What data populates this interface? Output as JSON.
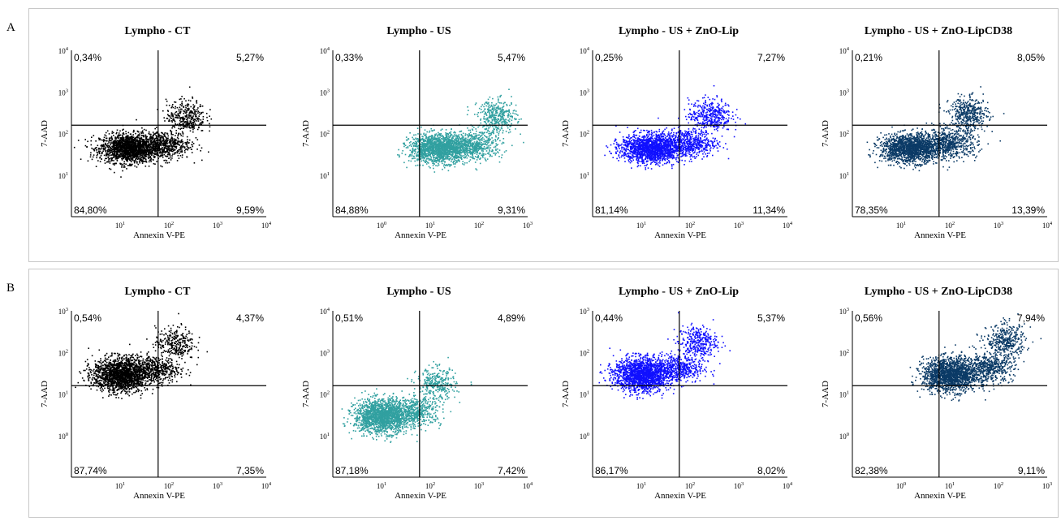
{
  "figure": {
    "rows": [
      {
        "label": "A"
      },
      {
        "label": "B"
      }
    ]
  },
  "colors": {
    "ct": "#000000",
    "us": "#31a0a0",
    "zno_lip": "#1010ff",
    "zno_lipcd38": "#0b3a66"
  },
  "chart_data": [
    {
      "type": "scatter",
      "row": "A",
      "title": "Lympho - CT",
      "xlabel": "Annexin V-PE",
      "ylabel": "7-AAD",
      "xscale": "log",
      "yscale": "log",
      "xticks": [
        "10^1",
        "10^2",
        "10^3",
        "10^4"
      ],
      "yticks": [
        "10^1",
        "10^2",
        "10^3",
        "10^4"
      ],
      "quadrants": {
        "upper_left": "0,34%",
        "upper_right": "5,27%",
        "lower_left": "84,80%",
        "lower_right": "9,59%"
      },
      "series": [
        {
          "color": "#000000",
          "clusters": [
            {
              "cx": 15,
              "cy": 45,
              "sx": 0.3,
              "sy": 0.17,
              "n": 1700
            },
            {
              "cx": 75,
              "cy": 55,
              "sx": 0.28,
              "sy": 0.17,
              "n": 520
            },
            {
              "cx": 220,
              "cy": 260,
              "sx": 0.2,
              "sy": 0.2,
              "n": 360
            }
          ]
        }
      ]
    },
    {
      "type": "scatter",
      "row": "A",
      "title": "Lympho - US",
      "xlabel": "Annexin V-PE",
      "ylabel": "7-AAD",
      "xscale": "log",
      "yscale": "log",
      "xticks": [
        "10^0",
        "10^1",
        "10^2",
        "10^3"
      ],
      "yticks": [
        "10^1",
        "10^2",
        "10^3",
        "10^4"
      ],
      "quadrants": {
        "upper_left": "0,33%",
        "upper_right": "5,47%",
        "lower_left": "84,88%",
        "lower_right": "9,31%"
      },
      "series": [
        {
          "color": "#31a0a0",
          "clusters": [
            {
              "cx": 15,
              "cy": 45,
              "sx": 0.3,
              "sy": 0.17,
              "n": 1700
            },
            {
              "cx": 80,
              "cy": 55,
              "sx": 0.28,
              "sy": 0.17,
              "n": 520
            },
            {
              "cx": 230,
              "cy": 260,
              "sx": 0.2,
              "sy": 0.2,
              "n": 380
            }
          ]
        }
      ]
    },
    {
      "type": "scatter",
      "row": "A",
      "title": "Lympho - US + ZnO-Lip",
      "xlabel": "Annexin V-PE",
      "ylabel": "7-AAD",
      "xscale": "log",
      "yscale": "log",
      "xticks": [
        "10^1",
        "10^2",
        "10^3",
        "10^4"
      ],
      "yticks": [
        "10^1",
        "10^2",
        "10^3",
        "10^4"
      ],
      "quadrants": {
        "upper_left": "0,25%",
        "upper_right": "7,27%",
        "lower_left": "81,14%",
        "lower_right": "11,34%"
      },
      "series": [
        {
          "color": "#1010ff",
          "clusters": [
            {
              "cx": 15,
              "cy": 45,
              "sx": 0.3,
              "sy": 0.17,
              "n": 1600
            },
            {
              "cx": 85,
              "cy": 60,
              "sx": 0.3,
              "sy": 0.17,
              "n": 600
            },
            {
              "cx": 250,
              "cy": 280,
              "sx": 0.22,
              "sy": 0.2,
              "n": 420
            }
          ]
        }
      ]
    },
    {
      "type": "scatter",
      "row": "A",
      "title": "Lympho - US + ZnO-LipCD38",
      "xlabel": "Annexin V-PE",
      "ylabel": "7-AAD",
      "xscale": "log",
      "yscale": "log",
      "xticks": [
        "10^1",
        "10^2",
        "10^3",
        "10^4"
      ],
      "yticks": [
        "10^1",
        "10^2",
        "10^3",
        "10^4"
      ],
      "quadrants": {
        "upper_left": "0,21%",
        "upper_right": "8,05%",
        "lower_left": "78,35%",
        "lower_right": "13,39%"
      },
      "series": [
        {
          "color": "#0b3a66",
          "clusters": [
            {
              "cx": 15,
              "cy": 45,
              "sx": 0.3,
              "sy": 0.17,
              "n": 1550
            },
            {
              "cx": 90,
              "cy": 60,
              "sx": 0.3,
              "sy": 0.17,
              "n": 650
            },
            {
              "cx": 240,
              "cy": 300,
              "sx": 0.2,
              "sy": 0.2,
              "n": 430
            }
          ]
        }
      ]
    },
    {
      "type": "scatter",
      "row": "B",
      "title": "Lympho - CT",
      "xlabel": "Annexin V-PE",
      "ylabel": "7-AAD",
      "xscale": "log",
      "yscale": "log",
      "xticks": [
        "10^1",
        "10^2",
        "10^3",
        "10^4"
      ],
      "yticks": [
        "10^0",
        "10^1",
        "10^2",
        "10^3"
      ],
      "quadrants": {
        "upper_left": "0,54%",
        "upper_right": "4,37%",
        "lower_left": "87,74%",
        "lower_right": "7,35%"
      },
      "series": [
        {
          "color": "#000000",
          "clusters": [
            {
              "cx": 10,
              "cy": 30,
              "sx": 0.28,
              "sy": 0.2,
              "n": 1750
            },
            {
              "cx": 50,
              "cy": 40,
              "sx": 0.26,
              "sy": 0.17,
              "n": 450
            },
            {
              "cx": 130,
              "cy": 170,
              "sx": 0.2,
              "sy": 0.2,
              "n": 300
            }
          ]
        }
      ]
    },
    {
      "type": "scatter",
      "row": "B",
      "title": "Lympho - US",
      "xlabel": "Annexin V-PE",
      "ylabel": "7-AAD",
      "xscale": "log",
      "yscale": "log",
      "xticks": [
        "10^1",
        "10^2",
        "10^3",
        "10^4"
      ],
      "yticks": [
        "10^1",
        "10^2",
        "10^3",
        "10^4"
      ],
      "quadrants": {
        "upper_left": "0,51%",
        "upper_right": "4,89%",
        "lower_left": "87,18%",
        "lower_right": "7,42%"
      },
      "series": [
        {
          "color": "#31a0a0",
          "clusters": [
            {
              "cx": 10,
              "cy": 30,
              "sx": 0.28,
              "sy": 0.2,
              "n": 1750
            },
            {
              "cx": 50,
              "cy": 40,
              "sx": 0.26,
              "sy": 0.17,
              "n": 450
            },
            {
              "cx": 130,
              "cy": 170,
              "sx": 0.2,
              "sy": 0.2,
              "n": 320
            }
          ]
        }
      ]
    },
    {
      "type": "scatter",
      "row": "B",
      "title": "Lympho - US + ZnO-Lip",
      "xlabel": "Annexin V-PE",
      "ylabel": "7-AAD",
      "xscale": "log",
      "yscale": "log",
      "xticks": [
        "10^1",
        "10^2",
        "10^3",
        "10^4"
      ],
      "yticks": [
        "10^0",
        "10^1",
        "10^2",
        "10^3"
      ],
      "quadrants": {
        "upper_left": "0,44%",
        "upper_right": "5,37%",
        "lower_left": "86,17%",
        "lower_right": "8,02%"
      },
      "series": [
        {
          "color": "#1010ff",
          "clusters": [
            {
              "cx": 10,
              "cy": 30,
              "sx": 0.28,
              "sy": 0.2,
              "n": 1700
            },
            {
              "cx": 55,
              "cy": 42,
              "sx": 0.26,
              "sy": 0.17,
              "n": 480
            },
            {
              "cx": 140,
              "cy": 180,
              "sx": 0.2,
              "sy": 0.2,
              "n": 340
            }
          ]
        }
      ]
    },
    {
      "type": "scatter",
      "row": "B",
      "title": "Lympho - US + ZnO-LipCD38",
      "xlabel": "Annexin V-PE",
      "ylabel": "7-AAD",
      "xscale": "log",
      "yscale": "log",
      "xticks": [
        "10^0",
        "10^1",
        "10^2",
        "10^3"
      ],
      "yticks": [
        "10^0",
        "10^1",
        "10^2",
        "10^3"
      ],
      "quadrants": {
        "upper_left": "0,56%",
        "upper_right": "7,94%",
        "lower_left": "82,38%",
        "lower_right": "9,11%"
      },
      "series": [
        {
          "color": "#0b3a66",
          "clusters": [
            {
              "cx": 10,
              "cy": 30,
              "sx": 0.28,
              "sy": 0.2,
              "n": 1650
            },
            {
              "cx": 60,
              "cy": 45,
              "sx": 0.26,
              "sy": 0.17,
              "n": 520
            },
            {
              "cx": 140,
              "cy": 190,
              "sx": 0.2,
              "sy": 0.2,
              "n": 380
            }
          ]
        }
      ]
    }
  ]
}
